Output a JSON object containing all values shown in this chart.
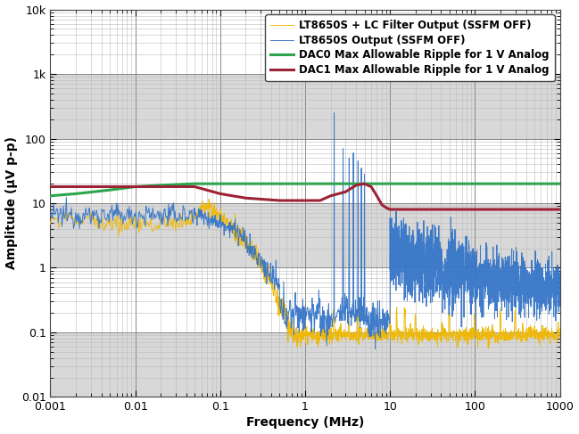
{
  "title": "",
  "xlabel": "Frequency (MHz)",
  "ylabel": "Amplitude (μV p-p)",
  "xlim": [
    0.001,
    1000
  ],
  "ylim": [
    0.01,
    10000
  ],
  "legend": [
    "LT8650S Output (SSFM OFF)",
    "LT8650S + LC Filter Output (SSFM OFF)",
    "DAC0 Max Allowable Ripple for 1 V Analog",
    "DAC1 Max Allowable Ripple for 1 V Analog"
  ],
  "line_colors": [
    "#3575c8",
    "#f0b800",
    "#2da44e",
    "#9b2335"
  ],
  "band_color": "#d8d8d8",
  "grid_major_color": "#888888",
  "grid_minor_color": "#bbbbbb",
  "bg_color": "#ffffff",
  "ytick_labels": [
    "0.01",
    "0.1",
    "1",
    "10",
    "100",
    "1k",
    "10k"
  ],
  "ytick_vals": [
    0.01,
    0.1,
    1,
    10,
    100,
    1000,
    10000
  ],
  "xtick_labels": [
    "0.001",
    "0.01",
    "0.1",
    "1",
    "10",
    "100",
    "1000"
  ],
  "xtick_vals": [
    0.001,
    0.01,
    0.1,
    1,
    10,
    100,
    1000
  ]
}
